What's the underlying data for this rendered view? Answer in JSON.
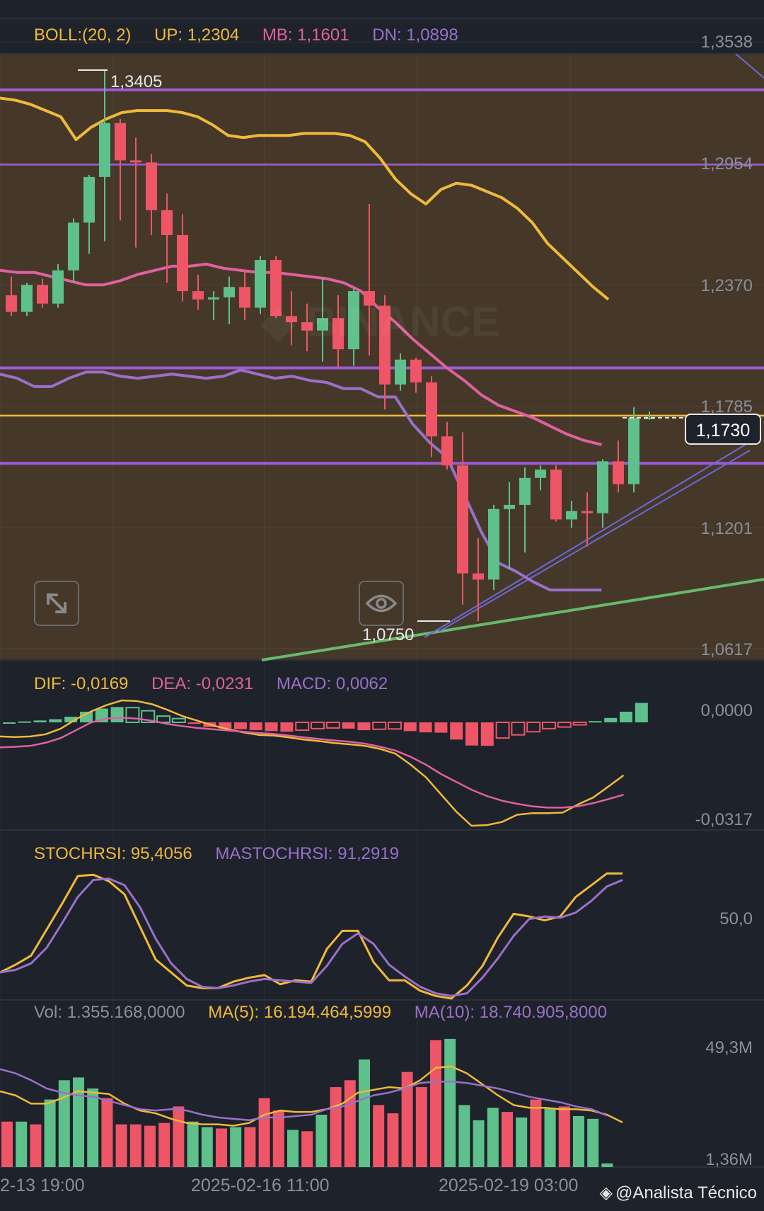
{
  "boll": {
    "label": "BOLL:(20, 2)",
    "up": "UP: 1,2304",
    "mb": "MB: 1,1601",
    "dn": "DN: 1,0898"
  },
  "macd": {
    "dif": "DIF: -0,0169",
    "dea": "DEA: -0,0231",
    "macd": "MACD: 0,0062"
  },
  "stoch": {
    "k": "STOCHRSI: 95,4056",
    "d": "MASTOCHRSI: 91,2919"
  },
  "vol": {
    "vol": "Vol: 1.355.168,0000",
    "ma5": "MA(5): 16.194.464,5999",
    "ma10": "MA(10): 18.740.905,8000"
  },
  "price_axis": [
    "1,3538",
    "1,2954",
    "1,2370",
    "1,1785",
    "1,1201",
    "1,0617"
  ],
  "macd_axis": [
    "0,0000",
    "-0,0317"
  ],
  "stoch_axis": [
    "50,0"
  ],
  "vol_axis": [
    "49,3M",
    "1,36M"
  ],
  "dates": [
    "2-13 19:00",
    "2025-02-16 11:00",
    "2025-02-19 03:00"
  ],
  "current_price": "1,1730",
  "high_label": "1,3405",
  "low_label": "1,0750",
  "watermark_text": "@Analista Técnico",
  "watermark_icon": "binance-icon",
  "colors": {
    "up": "#5ec08b",
    "down": "#ee5566",
    "boll_up": "#f0b93a",
    "boll_mb": "#e060a0",
    "boll_dn": "#9a70c8",
    "hline": "#a05ad8",
    "gold_line": "#f0b93a",
    "trend_green": "#6ab86a",
    "trend_blue": "#6a6ad8",
    "chart_bg": "#453829"
  },
  "chart_data": [
    {
      "type": "candlestick",
      "title": "",
      "y_axis_ticks": [
        1.3538,
        1.2954,
        1.237,
        1.1785,
        1.1201,
        1.0617
      ],
      "ylim": [
        1.0617,
        1.3538
      ],
      "x_tick_labels": [
        "2-13 19:00",
        "2025-02-16 11:00",
        "2025-02-19 03:00"
      ],
      "candles": [
        [
          1.232,
          1.241,
          1.222,
          1.224
        ],
        [
          1.224,
          1.238,
          1.222,
          1.237
        ],
        [
          1.237,
          1.24,
          1.226,
          1.228
        ],
        [
          1.228,
          1.247,
          1.226,
          1.244
        ],
        [
          1.244,
          1.269,
          1.238,
          1.267
        ],
        [
          1.267,
          1.29,
          1.252,
          1.289
        ],
        [
          1.289,
          1.3405,
          1.258,
          1.315
        ],
        [
          1.315,
          1.317,
          1.268,
          1.297
        ],
        [
          1.297,
          1.308,
          1.255,
          1.296
        ],
        [
          1.296,
          1.3,
          1.261,
          1.273
        ],
        [
          1.273,
          1.281,
          1.238,
          1.261
        ],
        [
          1.261,
          1.271,
          1.229,
          1.234
        ],
        [
          1.234,
          1.242,
          1.225,
          1.23
        ],
        [
          1.23,
          1.234,
          1.22,
          1.231
        ],
        [
          1.231,
          1.241,
          1.218,
          1.236
        ],
        [
          1.236,
          1.244,
          1.22,
          1.226
        ],
        [
          1.226,
          1.251,
          1.223,
          1.249
        ],
        [
          1.249,
          1.251,
          1.221,
          1.222
        ],
        [
          1.222,
          1.234,
          1.208,
          1.219
        ],
        [
          1.219,
          1.228,
          1.205,
          1.215
        ],
        [
          1.215,
          1.24,
          1.2,
          1.221
        ],
        [
          1.221,
          1.232,
          1.197,
          1.206
        ],
        [
          1.206,
          1.235,
          1.198,
          1.234
        ],
        [
          1.234,
          1.276,
          1.203,
          1.227
        ],
        [
          1.227,
          1.232,
          1.177,
          1.189
        ],
        [
          1.189,
          1.204,
          1.186,
          1.201
        ],
        [
          1.201,
          1.202,
          1.185,
          1.19
        ],
        [
          1.19,
          1.193,
          1.154,
          1.164
        ],
        [
          1.164,
          1.171,
          1.148,
          1.15
        ],
        [
          1.15,
          1.166,
          1.083,
          1.098
        ],
        [
          1.098,
          1.115,
          1.075,
          1.095
        ],
        [
          1.095,
          1.131,
          1.09,
          1.129
        ],
        [
          1.129,
          1.142,
          1.1,
          1.131
        ],
        [
          1.131,
          1.149,
          1.108,
          1.144
        ],
        [
          1.144,
          1.15,
          1.138,
          1.148
        ],
        [
          1.148,
          1.15,
          1.123,
          1.124
        ],
        [
          1.124,
          1.133,
          1.12,
          1.128
        ],
        [
          1.128,
          1.137,
          1.111,
          1.127
        ],
        [
          1.127,
          1.153,
          1.12,
          1.152
        ],
        [
          1.152,
          1.162,
          1.137,
          1.141
        ],
        [
          1.141,
          1.178,
          1.137,
          1.173
        ],
        [
          1.173,
          1.176,
          1.172,
          1.173
        ]
      ],
      "boll_up": [
        1.327,
        1.326,
        1.324,
        1.321,
        1.318,
        1.307,
        1.313,
        1.317,
        1.32,
        1.321,
        1.321,
        1.321,
        1.32,
        1.318,
        1.314,
        1.309,
        1.308,
        1.309,
        1.309,
        1.309,
        1.31,
        1.31,
        1.31,
        1.309,
        1.306,
        1.298,
        1.288,
        1.281,
        1.276,
        1.283,
        1.286,
        1.285,
        1.282,
        1.279,
        1.274,
        1.267,
        1.257,
        1.25,
        1.243,
        1.236,
        1.23
      ],
      "boll_mb": [
        1.244,
        1.243,
        1.243,
        1.241,
        1.239,
        1.237,
        1.237,
        1.239,
        1.242,
        1.244,
        1.246,
        1.246,
        1.247,
        1.245,
        1.244,
        1.243,
        1.243,
        1.242,
        1.241,
        1.24,
        1.238,
        1.234,
        1.226,
        1.219,
        1.211,
        1.204,
        1.197,
        1.191,
        1.184,
        1.179,
        1.176,
        1.173,
        1.169,
        1.165,
        1.162,
        1.16
      ],
      "boll_dn": [
        1.194,
        1.192,
        1.188,
        1.188,
        1.192,
        1.195,
        1.195,
        1.193,
        1.192,
        1.193,
        1.194,
        1.193,
        1.192,
        1.193,
        1.196,
        1.194,
        1.192,
        1.193,
        1.191,
        1.19,
        1.187,
        1.187,
        1.183,
        1.183,
        1.17,
        1.161,
        1.154,
        1.136,
        1.118,
        1.103,
        1.099,
        1.094,
        1.09,
        1.09,
        1.09,
        1.09
      ],
      "horizontal_lines": [
        1.331,
        1.295,
        1.197,
        1.174,
        1.151
      ],
      "annotations": [
        "1,3405",
        "1,0750",
        "1,1730"
      ]
    },
    {
      "type": "bar",
      "title": "MACD",
      "series": [
        {
          "name": "MACD",
          "values": [
            0.0,
            0.0003,
            0.0006,
            0.001,
            0.0018,
            0.0034,
            0.0044,
            0.0049,
            0.0047,
            0.0037,
            0.002,
            0.0012,
            -0.0005,
            -0.0015,
            -0.002,
            -0.0022,
            -0.0025,
            -0.0028,
            -0.003,
            -0.0025,
            -0.002,
            -0.0018,
            -0.002,
            -0.0025,
            -0.0022,
            -0.0021,
            -0.0028,
            -0.0032,
            -0.0033,
            -0.0055,
            -0.0074,
            -0.0075,
            -0.005,
            -0.004,
            -0.003,
            -0.002,
            -0.0015,
            -0.0008,
            0.0004,
            0.0014,
            0.0034,
            0.0062
          ]
        },
        {
          "name": "DIF",
          "values": [
            -0.0045,
            -0.0047,
            -0.0045,
            -0.0038,
            -0.002,
            0.001,
            0.0035,
            0.0055,
            0.007,
            0.0068,
            0.0058,
            0.004,
            0.002,
            0.0005,
            -0.001,
            -0.0022,
            -0.0032,
            -0.004,
            -0.0042,
            -0.0048,
            -0.0055,
            -0.006,
            -0.0066,
            -0.007,
            -0.0075,
            -0.0085,
            -0.01,
            -0.0135,
            -0.0175,
            -0.023,
            -0.0285,
            -0.033,
            -0.0328,
            -0.0318,
            -0.0295,
            -0.029,
            -0.029,
            -0.0288,
            -0.0262,
            -0.024,
            -0.0205,
            -0.0169
          ]
        },
        {
          "name": "DEA",
          "values": [
            -0.008,
            -0.0078,
            -0.0075,
            -0.0065,
            -0.005,
            -0.0025,
            0.0,
            0.0012,
            0.0015,
            0.0012,
            0.0005,
            -0.0005,
            -0.0012,
            -0.0018,
            -0.0022,
            -0.0026,
            -0.003,
            -0.0034,
            -0.0037,
            -0.0042,
            -0.0048,
            -0.0053,
            -0.0058,
            -0.0062,
            -0.0068,
            -0.0078,
            -0.009,
            -0.011,
            -0.0135,
            -0.0165,
            -0.019,
            -0.0215,
            -0.0235,
            -0.025,
            -0.026,
            -0.0268,
            -0.0272,
            -0.0272,
            -0.0268,
            -0.0258,
            -0.0245,
            -0.0231
          ]
        }
      ],
      "ylim": [
        -0.033,
        0.006
      ]
    },
    {
      "type": "line",
      "title": "",
      "series": [
        {
          "name": "STOCHRSI",
          "values": [
            20,
            26,
            33,
            53,
            73,
            94,
            95,
            90,
            80,
            55,
            30,
            20,
            10,
            8,
            8,
            13,
            16,
            18,
            11,
            14,
            13,
            38,
            52,
            52,
            28,
            14,
            14,
            6,
            2,
            0,
            10,
            25,
            47,
            65,
            63,
            60,
            63,
            78,
            87,
            96,
            96
          ]
        },
        {
          "name": "MASTOCHRSI",
          "values": [
            20,
            22,
            27,
            39,
            58,
            78,
            91,
            92,
            87,
            70,
            46,
            27,
            15,
            9,
            8,
            10,
            13,
            15,
            14,
            13,
            12,
            25,
            42,
            50,
            42,
            26,
            17,
            9,
            4,
            2,
            4,
            16,
            31,
            48,
            61,
            63,
            62,
            66,
            75,
            86,
            91
          ]
        }
      ],
      "ylim": [
        0,
        100
      ],
      "y_axis_ticks": [
        50
      ]
    },
    {
      "type": "bar",
      "title": "",
      "series": [
        {
          "name": "Vol",
          "values": [
            16.5,
            16.5,
            15.5,
            24.5,
            31.5,
            32.5,
            28.5,
            25.0,
            15.5,
            15.5,
            15.0,
            16.0,
            22.0,
            16.5,
            14.5,
            14.0,
            14.5,
            14.5,
            25.0,
            20.5,
            13.5,
            13.0,
            19.0,
            29.0,
            31.5,
            39.0,
            22.5,
            19.5,
            34.5,
            29.0,
            46.0,
            46.5,
            22.5,
            17.0,
            21.5,
            20.0,
            18.0,
            24.5,
            21.5,
            22.0,
            18.5,
            17.5,
            1.355
          ]
        },
        {
          "name": "MA(5)",
          "values": [
            27.5,
            26.0,
            23.0,
            23.0,
            25.0,
            27.5,
            27.0,
            26.5,
            23.0,
            20.5,
            19.5,
            17.5,
            16.0,
            15.5,
            15.5,
            15.0,
            16.0,
            19.0,
            20.5,
            20.0,
            20.0,
            21.0,
            23.0,
            27.0,
            28.0,
            29.0,
            28.5,
            31.5,
            36.0,
            36.5,
            34.0,
            30.0,
            26.0,
            22.5,
            21.5,
            21.5,
            21.0,
            21.0,
            20.5,
            19.0,
            16.2
          ]
        },
        {
          "name": "MA(10)",
          "values": [
            35.5,
            34.0,
            31.5,
            28.5,
            27.0,
            26.0,
            25.5,
            24.0,
            22.5,
            21.0,
            20.5,
            21.0,
            20.5,
            19.0,
            18.0,
            17.5,
            17.0,
            18.0,
            18.0,
            18.5,
            19.0,
            21.0,
            22.0,
            24.0,
            26.0,
            27.0,
            28.5,
            30.5,
            31.0,
            31.0,
            30.5,
            29.5,
            28.5,
            27.0,
            25.5,
            24.5,
            23.5,
            22.0,
            21.0,
            18.7
          ]
        }
      ],
      "y_axis_ticks": [
        "49,3M",
        "1,36M"
      ],
      "ylim": [
        0,
        49.3
      ]
    }
  ]
}
